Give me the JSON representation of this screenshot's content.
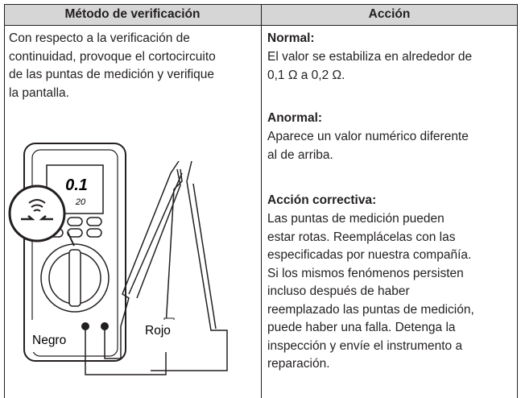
{
  "header": {
    "col1": "Método de verificación",
    "col2": "Acción"
  },
  "left": {
    "lines": [
      "Con respecto a la verificación de",
      "continuidad, provoque el cortocircuito",
      "de las puntas de medición y verifique",
      "la pantalla."
    ],
    "figure": {
      "display_top": "0.1",
      "display_bottom": "20",
      "black_label": "Negro",
      "red_label": "Rojo"
    }
  },
  "right": {
    "sections": [
      {
        "title": "Normal:",
        "lines": [
          "El valor se estabiliza en alrededor de",
          "0,1 Ω a 0,2 Ω."
        ]
      },
      {
        "title": "Anormal:",
        "lines": [
          "Aparece un valor numérico diferente",
          "al de arriba."
        ]
      },
      {
        "title": "Acción correctiva:",
        "lines": [
          "Las puntas de medición pueden",
          "estar rotas. Reemplácelas con las",
          "especificadas por nuestra compañía.",
          "Si los mismos fenómenos persisten",
          "incluso después de haber",
          "reemplazado las puntas de medición,",
          "puede haber una falla. Detenga la",
          "inspección y envíe el instrumento a",
          "reparación."
        ]
      }
    ]
  }
}
